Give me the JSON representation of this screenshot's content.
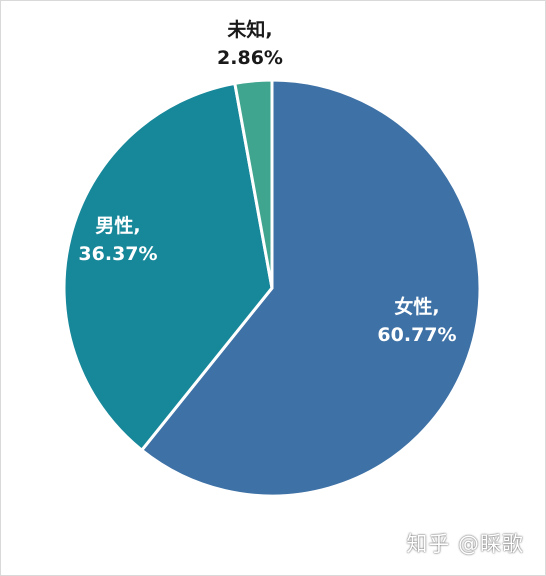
{
  "chart_data": {
    "type": "pie",
    "start_angle_deg": 0,
    "direction": "clockwise",
    "slices": [
      {
        "name": "女性",
        "value": 60.77,
        "label": "女性,",
        "value_label": "60.77%",
        "color": "#3e71a6",
        "label_color": "#ffffff"
      },
      {
        "name": "男性",
        "value": 36.37,
        "label": "男性,",
        "value_label": "36.37%",
        "color": "#17879a",
        "label_color": "#ffffff"
      },
      {
        "name": "未知",
        "value": 2.86,
        "label": "未知,",
        "value_label": "2.86%",
        "color": "#3fa58f",
        "label_color": "#1a1a1a"
      }
    ],
    "slice_border_color": "#ffffff"
  },
  "watermark": {
    "text": "知乎 @睬歌"
  }
}
